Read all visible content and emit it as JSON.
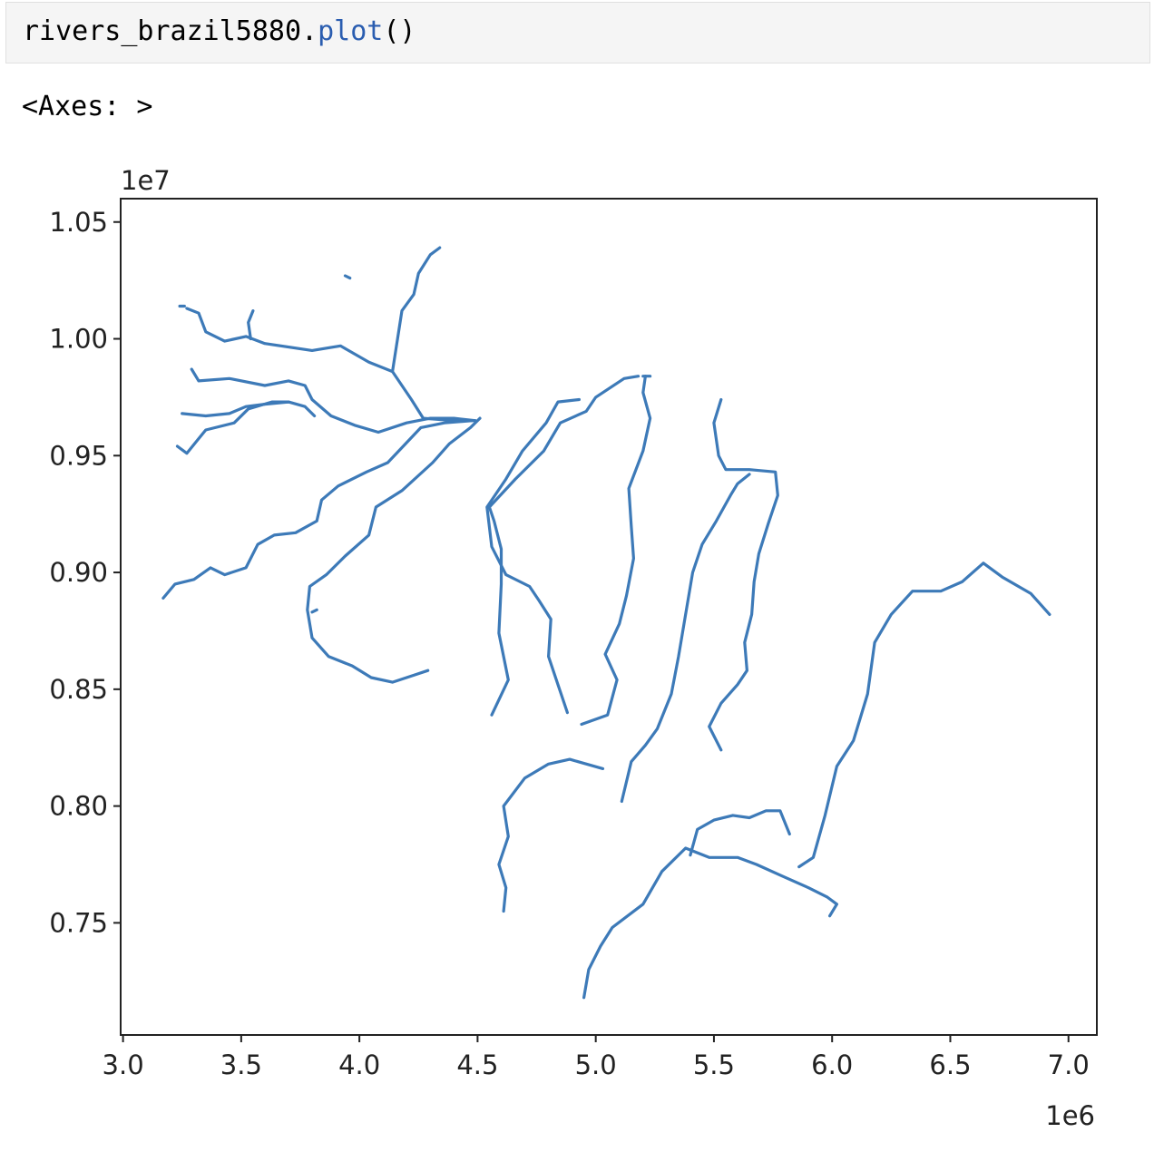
{
  "cell": {
    "code_object": "rivers_brazil5880",
    "code_dot": ".",
    "code_method": "plot",
    "code_parens": "()"
  },
  "output": {
    "text": "<Axes: >"
  },
  "colors": {
    "line": "#3d7ab8",
    "method_token": "#2a5db0"
  },
  "chart_data": {
    "type": "line",
    "title": "",
    "xlabel": "",
    "ylabel": "",
    "x_offset_label": "1e6",
    "y_offset_label": "1e7",
    "xlim": [
      2.99,
      7.12
    ],
    "ylim": [
      7.02,
      10.6
    ],
    "x_ticks": [
      3.0,
      3.5,
      4.0,
      4.5,
      5.0,
      5.5,
      6.0,
      6.5,
      7.0
    ],
    "x_tick_labels": [
      "3.0",
      "3.5",
      "4.0",
      "4.5",
      "5.0",
      "5.5",
      "6.0",
      "6.5",
      "7.0"
    ],
    "y_ticks": [
      7.5,
      8.0,
      8.5,
      9.0,
      9.5,
      10.0,
      10.5
    ],
    "y_tick_labels": [
      "0.75",
      "0.80",
      "0.85",
      "0.90",
      "0.95",
      "1.00",
      "1.05"
    ],
    "grid": false,
    "series": [
      {
        "values": [
          [
            4.34,
            10.39
          ],
          [
            4.3,
            10.36
          ],
          [
            4.25,
            10.28
          ],
          [
            4.23,
            10.19
          ],
          [
            4.18,
            10.12
          ],
          [
            4.16,
            9.99
          ],
          [
            4.14,
            9.86
          ],
          [
            4.22,
            9.74
          ],
          [
            4.27,
            9.66
          ],
          [
            4.4,
            9.65
          ],
          [
            4.49,
            9.65
          ]
        ]
      },
      {
        "values": [
          [
            3.27,
            10.13
          ],
          [
            3.32,
            10.11
          ],
          [
            3.35,
            10.03
          ],
          [
            3.43,
            9.99
          ],
          [
            3.52,
            10.01
          ],
          [
            3.6,
            9.98
          ],
          [
            3.8,
            9.95
          ],
          [
            3.92,
            9.97
          ],
          [
            4.04,
            9.9
          ],
          [
            4.14,
            9.86
          ]
        ]
      },
      {
        "values": [
          [
            3.55,
            10.12
          ],
          [
            3.53,
            10.07
          ],
          [
            3.54,
            10.0
          ]
        ]
      },
      {
        "values": [
          [
            3.29,
            9.87
          ],
          [
            3.32,
            9.82
          ],
          [
            3.45,
            9.83
          ],
          [
            3.6,
            9.8
          ],
          [
            3.7,
            9.82
          ],
          [
            3.77,
            9.8
          ],
          [
            3.8,
            9.74
          ],
          [
            3.88,
            9.67
          ],
          [
            3.98,
            9.63
          ],
          [
            4.08,
            9.6
          ],
          [
            4.2,
            9.64
          ],
          [
            4.3,
            9.66
          ],
          [
            4.4,
            9.66
          ],
          [
            4.49,
            9.65
          ]
        ]
      },
      {
        "values": [
          [
            3.25,
            9.68
          ],
          [
            3.35,
            9.67
          ],
          [
            3.45,
            9.68
          ],
          [
            3.52,
            9.71
          ],
          [
            3.6,
            9.72
          ],
          [
            3.7,
            9.73
          ],
          [
            3.77,
            9.71
          ],
          [
            3.81,
            9.67
          ]
        ]
      },
      {
        "values": [
          [
            3.23,
            9.54
          ],
          [
            3.27,
            9.51
          ],
          [
            3.31,
            9.56
          ],
          [
            3.35,
            9.61
          ],
          [
            3.47,
            9.64
          ],
          [
            3.53,
            9.7
          ],
          [
            3.63,
            9.73
          ],
          [
            3.7,
            9.73
          ]
        ]
      },
      {
        "values": [
          [
            3.17,
            8.89
          ],
          [
            3.22,
            8.95
          ],
          [
            3.3,
            8.97
          ],
          [
            3.37,
            9.02
          ],
          [
            3.43,
            8.99
          ],
          [
            3.52,
            9.02
          ],
          [
            3.57,
            9.12
          ],
          [
            3.64,
            9.16
          ],
          [
            3.73,
            9.17
          ],
          [
            3.82,
            9.22
          ],
          [
            3.84,
            9.31
          ],
          [
            3.91,
            9.37
          ],
          [
            4.03,
            9.43
          ],
          [
            4.12,
            9.47
          ],
          [
            4.26,
            9.62
          ],
          [
            4.36,
            9.64
          ],
          [
            4.48,
            9.65
          ]
        ]
      },
      {
        "values": [
          [
            4.29,
            8.58
          ],
          [
            4.23,
            8.56
          ],
          [
            4.14,
            8.53
          ],
          [
            4.05,
            8.55
          ],
          [
            3.97,
            8.6
          ],
          [
            3.87,
            8.64
          ],
          [
            3.8,
            8.72
          ],
          [
            3.78,
            8.84
          ],
          [
            3.79,
            8.94
          ],
          [
            3.86,
            8.99
          ],
          [
            3.94,
            9.07
          ],
          [
            4.04,
            9.16
          ],
          [
            4.07,
            9.28
          ],
          [
            4.18,
            9.35
          ],
          [
            4.31,
            9.47
          ],
          [
            4.38,
            9.55
          ],
          [
            4.47,
            9.62
          ],
          [
            4.51,
            9.66
          ]
        ]
      },
      {
        "values": [
          [
            4.56,
            8.39
          ],
          [
            4.63,
            8.54
          ],
          [
            4.59,
            8.74
          ],
          [
            4.6,
            8.95
          ],
          [
            4.6,
            9.1
          ],
          [
            4.57,
            9.22
          ],
          [
            4.55,
            9.28
          ],
          [
            4.66,
            9.4
          ],
          [
            4.78,
            9.52
          ],
          [
            4.85,
            9.64
          ],
          [
            4.96,
            9.69
          ],
          [
            5.0,
            9.75
          ],
          [
            5.12,
            9.83
          ],
          [
            5.18,
            9.84
          ]
        ]
      },
      {
        "values": [
          [
            4.88,
            8.4
          ],
          [
            4.84,
            8.52
          ],
          [
            4.8,
            8.64
          ],
          [
            4.81,
            8.8
          ],
          [
            4.76,
            8.88
          ],
          [
            4.72,
            8.94
          ],
          [
            4.62,
            8.99
          ],
          [
            4.56,
            9.11
          ],
          [
            4.54,
            9.28
          ],
          [
            4.62,
            9.4
          ],
          [
            4.69,
            9.52
          ],
          [
            4.79,
            9.64
          ],
          [
            4.84,
            9.73
          ],
          [
            4.93,
            9.74
          ]
        ]
      },
      {
        "values": [
          [
            4.94,
            8.35
          ],
          [
            5.05,
            8.39
          ],
          [
            5.09,
            8.54
          ],
          [
            5.04,
            8.65
          ],
          [
            5.1,
            8.78
          ],
          [
            5.13,
            8.9
          ],
          [
            5.16,
            9.06
          ],
          [
            5.15,
            9.2
          ],
          [
            5.14,
            9.36
          ],
          [
            5.2,
            9.52
          ],
          [
            5.23,
            9.66
          ],
          [
            5.2,
            9.77
          ],
          [
            5.21,
            9.84
          ]
        ]
      },
      {
        "values": [
          [
            5.11,
            8.02
          ],
          [
            5.15,
            8.19
          ],
          [
            5.21,
            8.26
          ],
          [
            5.26,
            8.33
          ],
          [
            5.32,
            8.48
          ],
          [
            5.35,
            8.64
          ],
          [
            5.38,
            8.82
          ],
          [
            5.41,
            9.0
          ],
          [
            5.45,
            9.12
          ],
          [
            5.51,
            9.22
          ],
          [
            5.57,
            9.33
          ],
          [
            5.6,
            9.38
          ],
          [
            5.65,
            9.42
          ]
        ]
      },
      {
        "values": [
          [
            5.53,
            8.24
          ],
          [
            5.48,
            8.34
          ],
          [
            5.53,
            8.44
          ],
          [
            5.6,
            8.52
          ],
          [
            5.64,
            8.58
          ],
          [
            5.63,
            8.7
          ],
          [
            5.66,
            8.82
          ],
          [
            5.67,
            8.96
          ],
          [
            5.69,
            9.08
          ],
          [
            5.73,
            9.21
          ],
          [
            5.77,
            9.33
          ],
          [
            5.76,
            9.43
          ],
          [
            5.65,
            9.44
          ],
          [
            5.55,
            9.44
          ],
          [
            5.52,
            9.5
          ],
          [
            5.5,
            9.64
          ],
          [
            5.53,
            9.74
          ]
        ]
      },
      {
        "values": [
          [
            4.61,
            7.55
          ],
          [
            4.62,
            7.65
          ],
          [
            4.59,
            7.75
          ],
          [
            4.63,
            7.87
          ],
          [
            4.61,
            8.0
          ],
          [
            4.7,
            8.12
          ],
          [
            4.8,
            8.18
          ],
          [
            4.89,
            8.2
          ],
          [
            5.03,
            8.16
          ]
        ]
      },
      {
        "values": [
          [
            4.95,
            7.18
          ],
          [
            4.97,
            7.3
          ],
          [
            5.02,
            7.4
          ],
          [
            5.07,
            7.48
          ],
          [
            5.2,
            7.58
          ],
          [
            5.28,
            7.72
          ],
          [
            5.38,
            7.82
          ],
          [
            5.48,
            7.78
          ],
          [
            5.6,
            7.78
          ],
          [
            5.68,
            7.75
          ],
          [
            5.79,
            7.7
          ],
          [
            5.9,
            7.65
          ],
          [
            5.98,
            7.61
          ],
          [
            6.02,
            7.58
          ],
          [
            5.99,
            7.53
          ]
        ]
      },
      {
        "values": [
          [
            5.4,
            7.79
          ],
          [
            5.43,
            7.9
          ],
          [
            5.5,
            7.94
          ],
          [
            5.58,
            7.96
          ],
          [
            5.65,
            7.95
          ],
          [
            5.72,
            7.98
          ],
          [
            5.78,
            7.98
          ],
          [
            5.82,
            7.88
          ]
        ]
      },
      {
        "values": [
          [
            5.86,
            7.74
          ],
          [
            5.92,
            7.78
          ],
          [
            5.97,
            7.96
          ],
          [
            6.02,
            8.17
          ],
          [
            6.09,
            8.28
          ],
          [
            6.15,
            8.48
          ],
          [
            6.18,
            8.7
          ],
          [
            6.25,
            8.82
          ],
          [
            6.34,
            8.92
          ],
          [
            6.46,
            8.92
          ],
          [
            6.55,
            8.96
          ],
          [
            6.64,
            9.04
          ],
          [
            6.72,
            8.98
          ],
          [
            6.84,
            8.91
          ],
          [
            6.92,
            8.82
          ]
        ]
      },
      {
        "values": [
          [
            3.8,
            8.83
          ],
          [
            3.82,
            8.84
          ]
        ]
      },
      {
        "values": [
          [
            3.94,
            10.27
          ],
          [
            3.96,
            10.26
          ]
        ]
      },
      {
        "values": [
          [
            5.2,
            9.84
          ],
          [
            5.23,
            9.84
          ]
        ]
      },
      {
        "values": [
          [
            3.24,
            10.14
          ],
          [
            3.26,
            10.14
          ]
        ]
      }
    ]
  }
}
